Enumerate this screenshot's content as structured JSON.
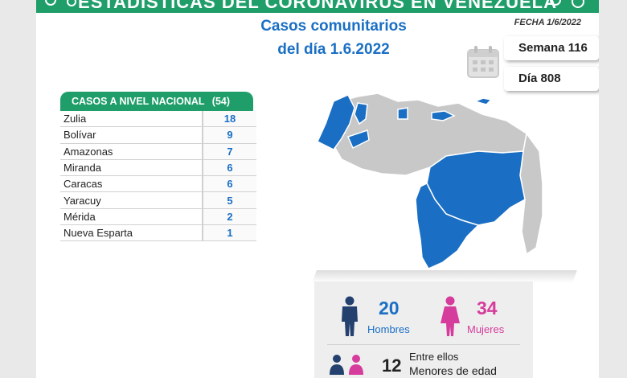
{
  "banner": {
    "title": "ESTADÍSTICAS DEL CORONAVIRUS EN VENEZUELA"
  },
  "header": {
    "title_line1": "Casos comunitarios",
    "title_line2": "del día 1.6.2022",
    "date_label": "FECHA 1/6/2022"
  },
  "counters": {
    "week": "Semana 116",
    "day": "Día 808"
  },
  "national": {
    "label": "CASOS A NIVEL NACIONAL",
    "total": "(54)",
    "rows": [
      {
        "state": "Zulia",
        "cases": "18"
      },
      {
        "state": "Bolívar",
        "cases": "9"
      },
      {
        "state": "Amazonas",
        "cases": "7"
      },
      {
        "state": "Miranda",
        "cases": "6"
      },
      {
        "state": "Caracas",
        "cases": "6"
      },
      {
        "state": "Yaracuy",
        "cases": "5"
      },
      {
        "state": "Mérida",
        "cases": "2"
      },
      {
        "state": "Nueva Esparta",
        "cases": "1"
      }
    ]
  },
  "gender": {
    "men_count": "20",
    "men_label": "Hombres",
    "women_count": "34",
    "women_label": "Mujeres"
  },
  "minors": {
    "count": "12",
    "line1": "Entre ellos",
    "line2": "Menores de edad"
  },
  "colors": {
    "brand_green": "#1f9e6a",
    "highlight_blue": "#1a6fc4",
    "map_grey": "#c8c8c8",
    "women_pink": "#d63c9c",
    "men_navy": "#24406e"
  },
  "icons": [
    "virus-icon",
    "calendar-icon",
    "venezuela-map",
    "man-icon",
    "woman-icon",
    "family-icon"
  ]
}
